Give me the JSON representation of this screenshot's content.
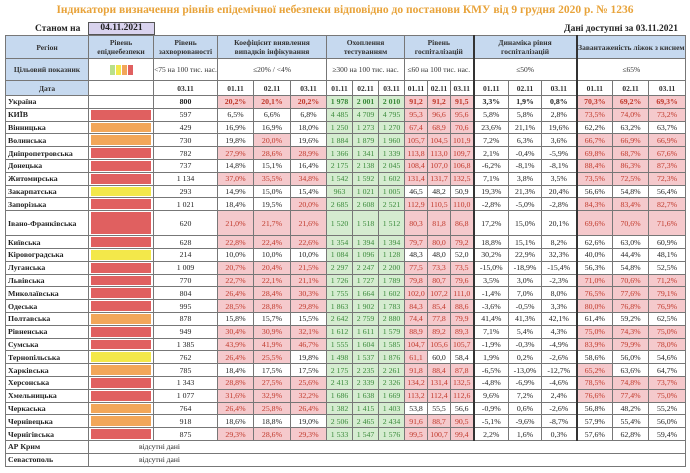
{
  "title": "Індикатори визначення рівнів епідемічної небезпеки відповідно до постанови КМУ від 9 грудня 2020 р. № 1236",
  "as_of_label": "Станом на",
  "as_of_date": "04.11.2021",
  "available_label": "Дані доступні за 03.11.2021",
  "headers": {
    "region": "Регіон",
    "level": "Рівень епіднебезпеки",
    "incidence": "Рівень захворюваності",
    "coef": "Коефіцієнт виявлення випадків інфікування",
    "testing": "Охоплення тестуванням",
    "hosp": "Рівень госпіталізацій",
    "dyn": "Динаміка рівня госпіталізацій",
    "beds": "Завантаженість ліжок з киснем"
  },
  "target": {
    "label": "Цільовий показник",
    "incidence": "<75 на 100 тис. нас.",
    "coef": "≤20% / <4%",
    "testing": "≥300 на 100 тис. нас.",
    "hosp": "≤60 на 100 тис. нас.",
    "dyn": "≤50%",
    "beds": "≤65%"
  },
  "date_row": {
    "label": "Дата",
    "incidence": "03.11",
    "days": [
      "01.11",
      "02.11",
      "03.11"
    ]
  },
  "level_colors": {
    "red": "#e06060",
    "orange": "#f2a65a",
    "yellow": "#f3e84a",
    "legend": [
      "#b9e08a",
      "#f3e84a",
      "#f2a65a",
      "#e06060"
    ]
  },
  "rows": [
    {
      "region": "Україна",
      "level": "",
      "inc": "800",
      "coef": [
        "20,2%",
        "20,1%",
        "20,2%"
      ],
      "test": [
        "1 978",
        "2 001",
        "2 010"
      ],
      "hosp": [
        "91,2",
        "91,2",
        "91,5"
      ],
      "dyn": [
        "3,3%",
        "1,9%",
        "0,8%"
      ],
      "beds": [
        "70,3%",
        "69,2%",
        "69,3%"
      ]
    },
    {
      "region": "КИЇВ",
      "level": "red",
      "inc": "597",
      "coef": [
        "6,5%",
        "6,6%",
        "6,8%"
      ],
      "test": [
        "4 485",
        "4 709",
        "4 795"
      ],
      "hosp": [
        "95,3",
        "96,6",
        "95,6"
      ],
      "dyn": [
        "5,8%",
        "5,8%",
        "2,8%"
      ],
      "beds": [
        "73,5%",
        "74,0%",
        "73,2%"
      ]
    },
    {
      "region": "Вінницька",
      "level": "orange",
      "inc": "429",
      "coef": [
        "16,9%",
        "16,9%",
        "18,0%"
      ],
      "test": [
        "1 250",
        "1 273",
        "1 270"
      ],
      "hosp": [
        "67,4",
        "68,9",
        "70,6"
      ],
      "dyn": [
        "23,6%",
        "21,1%",
        "19,6%"
      ],
      "beds": [
        "62,2%",
        "63,2%",
        "63,7%"
      ]
    },
    {
      "region": "Волинська",
      "level": "orange",
      "inc": "730",
      "coef": [
        "19,8%",
        "20,0%",
        "19,6%"
      ],
      "test": [
        "1 884",
        "1 879",
        "1 960"
      ],
      "hosp": [
        "105,7",
        "104,5",
        "101,9"
      ],
      "dyn": [
        "7,2%",
        "6,3%",
        "3,6%"
      ],
      "beds": [
        "66,7%",
        "66,9%",
        "66,9%"
      ]
    },
    {
      "region": "Дніпропетровська",
      "level": "red",
      "inc": "782",
      "coef": [
        "27,9%",
        "28,6%",
        "28,9%"
      ],
      "test": [
        "1 366",
        "1 341",
        "1 339"
      ],
      "hosp": [
        "113,8",
        "113,0",
        "109,7"
      ],
      "dyn": [
        "2,1%",
        "-0,4%",
        "-5,9%"
      ],
      "beds": [
        "69,8%",
        "68,7%",
        "67,6%"
      ]
    },
    {
      "region": "Донецька",
      "level": "red",
      "inc": "737",
      "coef": [
        "14,8%",
        "15,1%",
        "16,4%"
      ],
      "test": [
        "2 175",
        "2 138",
        "2 045"
      ],
      "hosp": [
        "108,4",
        "107,0",
        "106,8"
      ],
      "dyn": [
        "-6,2%",
        "-8,1%",
        "-8,1%"
      ],
      "beds": [
        "88,4%",
        "86,3%",
        "87,3%"
      ]
    },
    {
      "region": "Житомирська",
      "level": "red",
      "inc": "1 134",
      "coef": [
        "37,0%",
        "35,5%",
        "34,8%"
      ],
      "test": [
        "1 542",
        "1 592",
        "1 602"
      ],
      "hosp": [
        "131,4",
        "131,7",
        "132,5"
      ],
      "dyn": [
        "7,1%",
        "3,8%",
        "3,5%"
      ],
      "beds": [
        "73,5%",
        "72,5%",
        "72,3%"
      ]
    },
    {
      "region": "Закарпатська",
      "level": "yellow",
      "inc": "293",
      "coef": [
        "14,9%",
        "15,0%",
        "15,4%"
      ],
      "test": [
        "963",
        "1 021",
        "1 005"
      ],
      "hosp": [
        "46,5",
        "48,2",
        "50,9"
      ],
      "dyn": [
        "19,3%",
        "21,3%",
        "20,4%"
      ],
      "beds": [
        "56,6%",
        "54,8%",
        "56,4%"
      ]
    },
    {
      "region": "Запорізька",
      "level": "red",
      "inc": "1 021",
      "coef": [
        "18,4%",
        "19,5%",
        "20,0%"
      ],
      "test": [
        "2 685",
        "2 608",
        "2 521"
      ],
      "hosp": [
        "112,9",
        "110,5",
        "110,0"
      ],
      "dyn": [
        "-2,8%",
        "-5,0%",
        "-2,8%"
      ],
      "beds": [
        "84,3%",
        "83,4%",
        "82,7%"
      ]
    },
    {
      "region": "Івано-Франківська",
      "level": "red",
      "inc": "620",
      "coef": [
        "21,0%",
        "21,7%",
        "21,6%"
      ],
      "test": [
        "1 520",
        "1 518",
        "1 512"
      ],
      "hosp": [
        "80,3",
        "81,8",
        "86,8"
      ],
      "dyn": [
        "17,2%",
        "15,0%",
        "20,1%"
      ],
      "beds": [
        "69,6%",
        "70,6%",
        "71,6%"
      ]
    },
    {
      "region": "Київська",
      "level": "red",
      "inc": "628",
      "coef": [
        "22,8%",
        "22,4%",
        "22,6%"
      ],
      "test": [
        "1 354",
        "1 394",
        "1 394"
      ],
      "hosp": [
        "79,7",
        "80,0",
        "79,2"
      ],
      "dyn": [
        "18,8%",
        "15,1%",
        "8,2%"
      ],
      "beds": [
        "62,6%",
        "63,0%",
        "60,9%"
      ]
    },
    {
      "region": "Кіровоградська",
      "level": "yellow",
      "inc": "214",
      "coef": [
        "10,0%",
        "10,0%",
        "10,0%"
      ],
      "test": [
        "1 084",
        "1 096",
        "1 128"
      ],
      "hosp": [
        "48,3",
        "48,0",
        "52,0"
      ],
      "dyn": [
        "30,2%",
        "22,9%",
        "32,3%"
      ],
      "beds": [
        "40,0%",
        "44,4%",
        "48,1%"
      ]
    },
    {
      "region": "Луганська",
      "level": "red",
      "inc": "1 009",
      "coef": [
        "20,7%",
        "20,4%",
        "21,5%"
      ],
      "test": [
        "2 297",
        "2 247",
        "2 200"
      ],
      "hosp": [
        "77,5",
        "73,3",
        "73,5"
      ],
      "dyn": [
        "-15,0%",
        "-18,9%",
        "-15,4%"
      ],
      "beds": [
        "56,3%",
        "54,8%",
        "52,5%"
      ]
    },
    {
      "region": "Львівська",
      "level": "red",
      "inc": "770",
      "coef": [
        "22,7%",
        "22,1%",
        "21,1%"
      ],
      "test": [
        "1 726",
        "1 727",
        "1 789"
      ],
      "hosp": [
        "79,8",
        "80,7",
        "79,6"
      ],
      "dyn": [
        "3,5%",
        "3,0%",
        "-2,3%"
      ],
      "beds": [
        "71,0%",
        "70,6%",
        "71,2%"
      ]
    },
    {
      "region": "Миколаївська",
      "level": "red",
      "inc": "804",
      "coef": [
        "26,4%",
        "28,4%",
        "30,3%"
      ],
      "test": [
        "1 755",
        "1 664",
        "1 602"
      ],
      "hosp": [
        "102,0",
        "107,2",
        "111,0"
      ],
      "dyn": [
        "-1,4%",
        "7,0%",
        "8,0%"
      ],
      "beds": [
        "76,5%",
        "77,6%",
        "79,1%"
      ]
    },
    {
      "region": "Одеська",
      "level": "red",
      "inc": "995",
      "coef": [
        "28,5%",
        "28,8%",
        "29,8%"
      ],
      "test": [
        "1 863",
        "1 902",
        "1 783"
      ],
      "hosp": [
        "84,3",
        "85,4",
        "88,6"
      ],
      "dyn": [
        "-3,6%",
        "-0,5%",
        "3,3%"
      ],
      "beds": [
        "80,0%",
        "76,8%",
        "76,9%"
      ]
    },
    {
      "region": "Полтавська",
      "level": "orange",
      "inc": "878",
      "coef": [
        "15,8%",
        "15,7%",
        "15,5%"
      ],
      "test": [
        "2 642",
        "2 759",
        "2 880"
      ],
      "hosp": [
        "74,4",
        "77,8",
        "79,9"
      ],
      "dyn": [
        "41,4%",
        "41,3%",
        "42,1%"
      ],
      "beds": [
        "61,4%",
        "59,2%",
        "62,5%"
      ]
    },
    {
      "region": "Рівненська",
      "level": "red",
      "inc": "949",
      "coef": [
        "30,4%",
        "30,9%",
        "32,1%"
      ],
      "test": [
        "1 612",
        "1 611",
        "1 579"
      ],
      "hosp": [
        "88,9",
        "89,2",
        "89,3"
      ],
      "dyn": [
        "7,1%",
        "5,4%",
        "4,3%"
      ],
      "beds": [
        "75,0%",
        "74,3%",
        "75,0%"
      ]
    },
    {
      "region": "Сумська",
      "level": "red",
      "inc": "1 385",
      "coef": [
        "43,9%",
        "41,9%",
        "46,7%"
      ],
      "test": [
        "1 555",
        "1 604",
        "1 585"
      ],
      "hosp": [
        "104,7",
        "105,6",
        "105,7"
      ],
      "dyn": [
        "-1,9%",
        "-0,3%",
        "-4,9%"
      ],
      "beds": [
        "83,9%",
        "79,9%",
        "78,0%"
      ]
    },
    {
      "region": "Тернопільська",
      "level": "yellow",
      "inc": "762",
      "coef": [
        "26,4%",
        "25,5%",
        "19,8%"
      ],
      "test": [
        "1 498",
        "1 537",
        "1 876"
      ],
      "hosp": [
        "61,1",
        "60,0",
        "58,4"
      ],
      "dyn": [
        "1,9%",
        "0,2%",
        "-2,6%"
      ],
      "beds": [
        "58,6%",
        "56,0%",
        "54,6%"
      ]
    },
    {
      "region": "Харківська",
      "level": "orange",
      "inc": "785",
      "coef": [
        "18,4%",
        "17,5%",
        "17,5%"
      ],
      "test": [
        "2 175",
        "2 235",
        "2 261"
      ],
      "hosp": [
        "91,8",
        "88,4",
        "87,8"
      ],
      "dyn": [
        "-6,5%",
        "-13,0%",
        "-12,7%"
      ],
      "beds": [
        "65,2%",
        "63,6%",
        "64,7%"
      ]
    },
    {
      "region": "Херсонська",
      "level": "red",
      "inc": "1 343",
      "coef": [
        "28,8%",
        "27,5%",
        "25,6%"
      ],
      "test": [
        "2 413",
        "2 339",
        "2 326"
      ],
      "hosp": [
        "134,2",
        "131,4",
        "132,5"
      ],
      "dyn": [
        "-4,8%",
        "-6,9%",
        "-4,6%"
      ],
      "beds": [
        "78,5%",
        "74,8%",
        "73,7%"
      ]
    },
    {
      "region": "Хмельницька",
      "level": "red",
      "inc": "1 077",
      "coef": [
        "31,6%",
        "32,9%",
        "32,2%"
      ],
      "test": [
        "1 686",
        "1 638",
        "1 669"
      ],
      "hosp": [
        "113,2",
        "112,4",
        "112,6"
      ],
      "dyn": [
        "9,6%",
        "7,2%",
        "2,4%"
      ],
      "beds": [
        "76,6%",
        "77,4%",
        "75,0%"
      ]
    },
    {
      "region": "Черкаська",
      "level": "orange",
      "inc": "764",
      "coef": [
        "26,4%",
        "25,8%",
        "26,4%"
      ],
      "test": [
        "1 382",
        "1 415",
        "1 403"
      ],
      "hosp": [
        "53,8",
        "55,5",
        "56,6"
      ],
      "dyn": [
        "-0,9%",
        "0,6%",
        "-2,6%"
      ],
      "beds": [
        "56,8%",
        "48,2%",
        "55,2%"
      ]
    },
    {
      "region": "Чернівецька",
      "level": "orange",
      "inc": "918",
      "coef": [
        "18,6%",
        "18,8%",
        "19,0%"
      ],
      "test": [
        "2 506",
        "2 465",
        "2 434"
      ],
      "hosp": [
        "91,6",
        "88,7",
        "90,5"
      ],
      "dyn": [
        "-5,1%",
        "-9,6%",
        "-8,7%"
      ],
      "beds": [
        "57,9%",
        "55,4%",
        "56,0%"
      ]
    },
    {
      "region": "Чернігівська",
      "level": "red",
      "inc": "875",
      "coef": [
        "29,3%",
        "28,6%",
        "29,3%"
      ],
      "test": [
        "1 533",
        "1 547",
        "1 576"
      ],
      "hosp": [
        "99,5",
        "100,7",
        "99,4"
      ],
      "dyn": [
        "2,2%",
        "1,6%",
        "0,3%"
      ],
      "beds": [
        "57,6%",
        "62,8%",
        "59,4%"
      ]
    }
  ],
  "missing": [
    {
      "region": "АР Крим",
      "note": "відсутні дані"
    },
    {
      "region": "Севастополь",
      "note": "відсутні дані"
    }
  ]
}
